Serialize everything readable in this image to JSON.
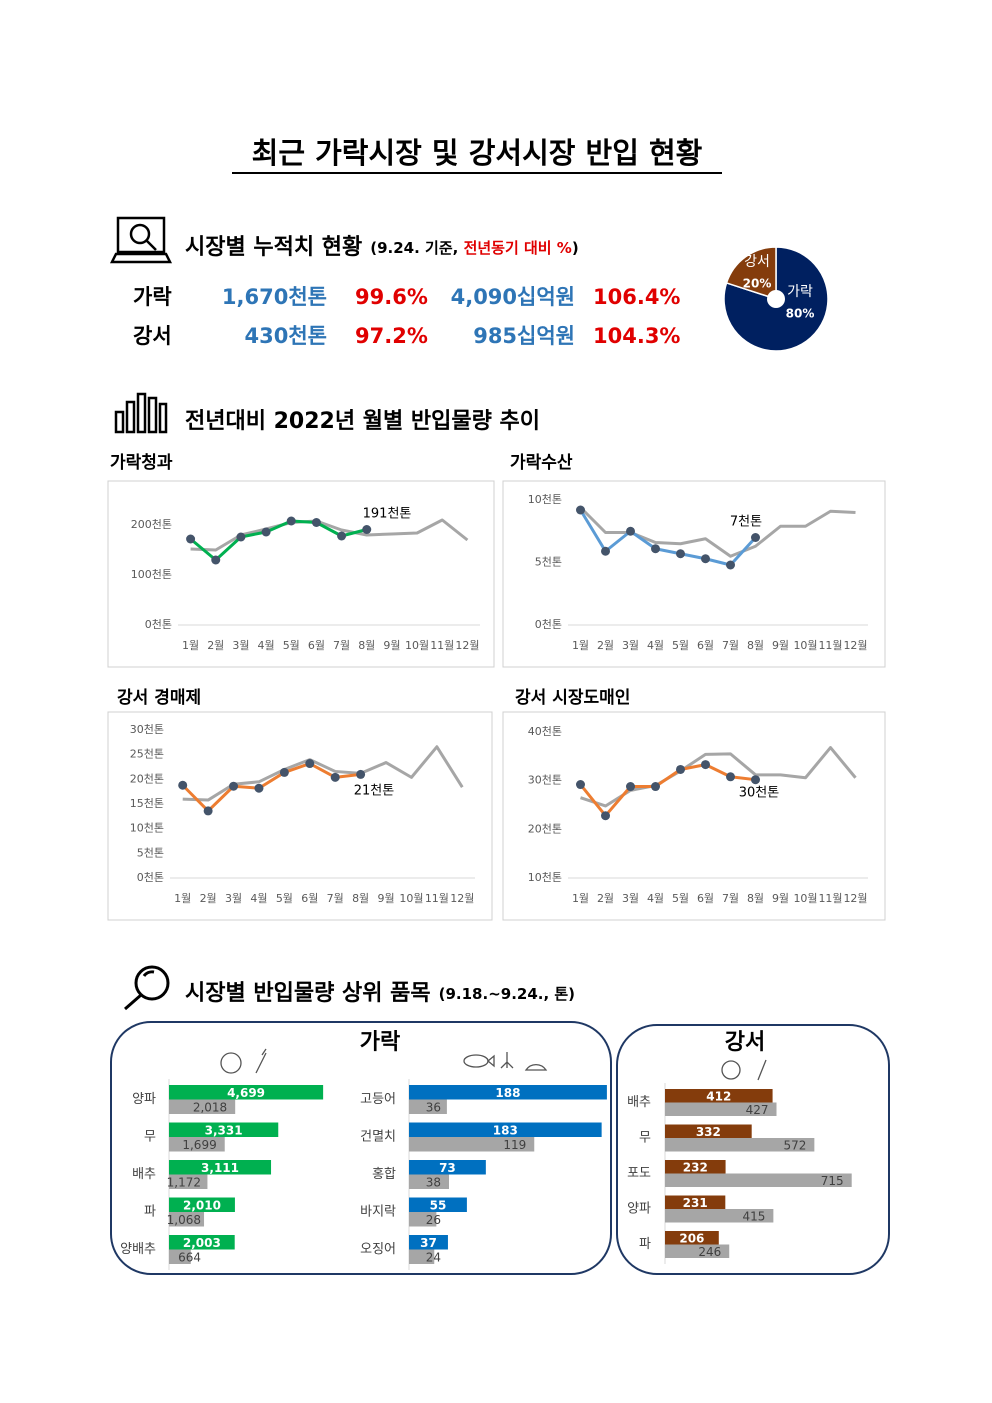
{
  "title": "최근 가락시장 및 강서시장 반입 현황",
  "summary": {
    "heading": "시장별 누적치 현황",
    "note_prefix": "(9.24. 기준, ",
    "note_red": "전년동기 대비 %",
    "note_suffix": ")",
    "rows": [
      [
        "가락",
        "1,670천톤",
        "99.6%",
        "4,090십억원",
        "106.4%"
      ],
      [
        "강서",
        "430천톤",
        "97.2%",
        "985십억원",
        "104.3%"
      ]
    ]
  },
  "trend_heading": "전년대비 2022년 월별 반입물량 추이",
  "top_heading": "시장별 반입물량 상위 품목",
  "top_note": "(9.18.~9.24., 톤)",
  "top_markets": [
    "가락",
    "강서"
  ],
  "chart_data": [
    {
      "type": "pie",
      "categories": [
        "가락",
        "강서"
      ],
      "values": [
        80,
        20
      ],
      "value_labels": [
        "80%",
        "20%"
      ],
      "colors": [
        "#002060",
        "#843c0c"
      ]
    },
    {
      "type": "line",
      "title": "가락청과",
      "annotation": "191천톤",
      "categories": [
        "1월",
        "2월",
        "3월",
        "4월",
        "5월",
        "6월",
        "7월",
        "8월",
        "9월",
        "10월",
        "11월",
        "12월"
      ],
      "ylim": [
        0,
        250
      ],
      "yticks": [
        {
          "value": 0,
          "label": "0천톤"
        },
        {
          "value": 100,
          "label": "100천톤"
        },
        {
          "value": 200,
          "label": "200천톤"
        }
      ],
      "series": [
        {
          "color": "#00b050",
          "values": [
            172,
            130,
            176,
            186,
            208,
            205,
            178,
            191,
            null,
            null,
            null,
            null
          ]
        },
        {
          "color": "#a6a6a6",
          "values": [
            152,
            150,
            180,
            192,
            205,
            208,
            190,
            180,
            182,
            184,
            210,
            170
          ]
        }
      ]
    },
    {
      "type": "line",
      "title": "가락수산",
      "annotation": "7천톤",
      "categories": [
        "1월",
        "2월",
        "3월",
        "4월",
        "5월",
        "6월",
        "7월",
        "8월",
        "9월",
        "10월",
        "11월",
        "12월"
      ],
      "ylim": [
        0,
        11
      ],
      "yticks": [
        {
          "value": 0,
          "label": "0천톤"
        },
        {
          "value": 5,
          "label": "5천톤"
        },
        {
          "value": 10,
          "label": "10천톤"
        }
      ],
      "series": [
        {
          "color": "#5b9bd5",
          "values": [
            9.2,
            5.9,
            7.5,
            6.1,
            5.7,
            5.3,
            4.8,
            7.0,
            null,
            null,
            null,
            null
          ]
        },
        {
          "color": "#a6a6a6",
          "values": [
            9.4,
            7.4,
            7.4,
            6.6,
            6.5,
            6.9,
            5.5,
            6.3,
            7.9,
            7.9,
            9.1,
            9.0
          ]
        }
      ]
    },
    {
      "type": "line",
      "title": "강서 경매제",
      "annotation": "21천톤",
      "categories": [
        "1월",
        "2월",
        "3월",
        "4월",
        "5월",
        "6월",
        "7월",
        "8월",
        "9월",
        "10월",
        "11월",
        "12월"
      ],
      "ylim": [
        0,
        30
      ],
      "yticks": [
        {
          "value": 0,
          "label": "0천톤"
        },
        {
          "value": 5,
          "label": "5천톤"
        },
        {
          "value": 10,
          "label": "10천톤"
        },
        {
          "value": 15,
          "label": "15천톤"
        },
        {
          "value": 20,
          "label": "20천톤"
        },
        {
          "value": 25,
          "label": "25천톤"
        },
        {
          "value": 30,
          "label": "30천톤"
        }
      ],
      "series": [
        {
          "color": "#ed7d31",
          "values": [
            18.8,
            13.6,
            18.6,
            18.2,
            21.4,
            23.2,
            20.4,
            21,
            null,
            null,
            null,
            null
          ]
        },
        {
          "color": "#a6a6a6",
          "values": [
            16,
            15.8,
            19,
            19.5,
            22,
            24,
            21.6,
            21.2,
            23.4,
            20.4,
            26.6,
            18.4
          ]
        }
      ]
    },
    {
      "type": "line",
      "title": "강서 시장도매인",
      "annotation": "30천톤",
      "categories": [
        "1월",
        "2월",
        "3월",
        "4월",
        "5월",
        "6월",
        "7월",
        "8월",
        "9월",
        "10월",
        "11월",
        "12월"
      ],
      "ylim": [
        10,
        40
      ],
      "yticks": [
        {
          "value": 10,
          "label": "10천톤"
        },
        {
          "value": 20,
          "label": "20천톤"
        },
        {
          "value": 30,
          "label": "30천톤"
        },
        {
          "value": 40,
          "label": "40천톤"
        }
      ],
      "series": [
        {
          "color": "#ed7d31",
          "values": [
            29.2,
            22.8,
            28.8,
            28.8,
            32.3,
            33.3,
            30.8,
            30.2,
            null,
            null,
            null,
            null
          ]
        },
        {
          "color": "#a6a6a6",
          "values": [
            26.5,
            24.8,
            28,
            29,
            32,
            35.4,
            35.5,
            31.2,
            31.2,
            30.6,
            36.8,
            30.6
          ]
        }
      ]
    },
    {
      "type": "hbar",
      "categories": [
        "양파",
        "무",
        "배추",
        "파",
        "양배추"
      ],
      "xlim": [
        0,
        5000
      ],
      "series": [
        {
          "color": "#00b050",
          "values": [
            4699,
            3331,
            3111,
            2010,
            2003
          ],
          "value_labels": [
            "4,699",
            "3,331",
            "3,111",
            "2,010",
            "2,003"
          ]
        },
        {
          "color": "#a6a6a6",
          "values": [
            2018,
            1699,
            1172,
            1068,
            664
          ],
          "value_labels": [
            "2,018",
            "1,699",
            "1,172",
            "1,068",
            "664"
          ]
        }
      ]
    },
    {
      "type": "hbar",
      "categories": [
        "고등어",
        "건멸치",
        "홍합",
        "바지락",
        "오징어"
      ],
      "xlim": [
        0,
        190
      ],
      "series": [
        {
          "color": "#0070c0",
          "values": [
            188,
            183,
            73,
            55,
            37
          ]
        },
        {
          "color": "#a6a6a6",
          "values": [
            36,
            119,
            38,
            26,
            24
          ]
        }
      ]
    },
    {
      "type": "hbar",
      "categories": [
        "배추",
        "무",
        "포도",
        "양파",
        "파"
      ],
      "xlim": [
        0,
        720
      ],
      "series": [
        {
          "color": "#843c0c",
          "values": [
            412,
            332,
            232,
            231,
            206
          ]
        },
        {
          "color": "#a6a6a6",
          "values": [
            427,
            572,
            715,
            415,
            246
          ]
        }
      ]
    }
  ]
}
